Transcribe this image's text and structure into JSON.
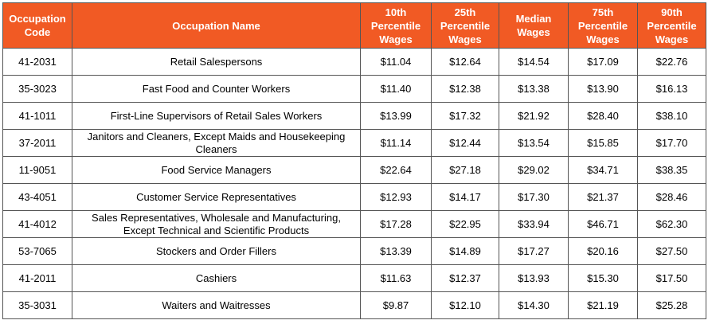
{
  "table": {
    "headers": [
      "Occupation Code",
      "Occupation Name",
      "10th Percentile Wages",
      "25th Percentile Wages",
      "Median Wages",
      "75th Percentile Wages",
      "90th Percentile Wages"
    ],
    "rows": [
      [
        "41-2031",
        "Retail Salespersons",
        "$11.04",
        "$12.64",
        "$14.54",
        "$17.09",
        "$22.76"
      ],
      [
        "35-3023",
        "Fast Food and Counter Workers",
        "$11.40",
        "$12.38",
        "$13.38",
        "$13.90",
        "$16.13"
      ],
      [
        "41-1011",
        "First-Line Supervisors of Retail Sales Workers",
        "$13.99",
        "$17.32",
        "$21.92",
        "$28.40",
        "$38.10"
      ],
      [
        "37-2011",
        "Janitors and Cleaners, Except Maids and Housekeeping Cleaners",
        "$11.14",
        "$12.44",
        "$13.54",
        "$15.85",
        "$17.70"
      ],
      [
        "11-9051",
        "Food Service Managers",
        "$22.64",
        "$27.18",
        "$29.02",
        "$34.71",
        "$38.35"
      ],
      [
        "43-4051",
        "Customer Service Representatives",
        "$12.93",
        "$14.17",
        "$17.30",
        "$21.37",
        "$28.46"
      ],
      [
        "41-4012",
        "Sales Representatives, Wholesale and Manufacturing, Except Technical and Scientific Products",
        "$17.28",
        "$22.95",
        "$33.94",
        "$46.71",
        "$62.30"
      ],
      [
        "53-7065",
        "Stockers and Order Fillers",
        "$13.39",
        "$14.89",
        "$17.27",
        "$20.16",
        "$27.50"
      ],
      [
        "41-2011",
        "Cashiers",
        "$11.63",
        "$12.37",
        "$13.93",
        "$15.30",
        "$17.50"
      ],
      [
        "35-3031",
        "Waiters and Waitresses",
        "$9.87",
        "$12.10",
        "$14.30",
        "$21.19",
        "$25.28"
      ]
    ]
  }
}
